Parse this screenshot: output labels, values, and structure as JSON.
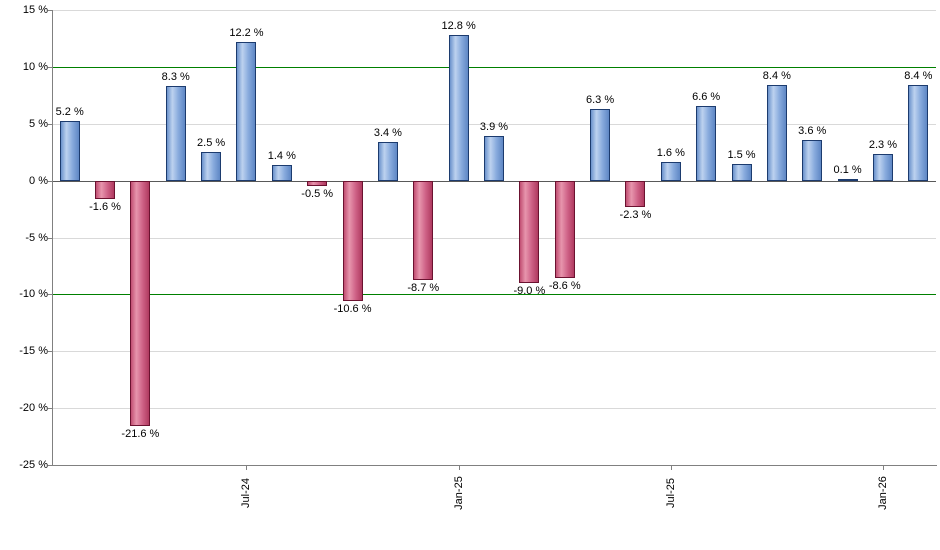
{
  "chart_data": {
    "type": "bar",
    "title": "",
    "xlabel": "",
    "ylabel": "",
    "ylim": [
      -25,
      15
    ],
    "grid": true,
    "legend": "none",
    "y_ticks": [
      {
        "value": 15,
        "label": "15 %"
      },
      {
        "value": 10,
        "label": "10 %"
      },
      {
        "value": 5,
        "label": "5 %"
      },
      {
        "value": 0,
        "label": "0 %"
      },
      {
        "value": -5,
        "label": "-5 %"
      },
      {
        "value": -10,
        "label": "-10 %"
      },
      {
        "value": -15,
        "label": "-15 %"
      },
      {
        "value": -20,
        "label": "-20 %"
      },
      {
        "value": -25,
        "label": "-25 %"
      }
    ],
    "reference_lines": [
      10,
      -10
    ],
    "x_ticks": [
      {
        "index": 5,
        "label": "Jul-24"
      },
      {
        "index": 11,
        "label": "Jan-25"
      },
      {
        "index": 17,
        "label": "Jul-25"
      },
      {
        "index": 23,
        "label": "Jan-26"
      }
    ],
    "values": [
      5.2,
      -1.6,
      -21.6,
      8.3,
      2.5,
      12.2,
      1.4,
      -0.5,
      -10.6,
      3.4,
      -8.7,
      12.8,
      3.9,
      -9.0,
      -8.6,
      6.3,
      -2.3,
      1.6,
      6.6,
      1.5,
      8.4,
      3.6,
      0.1,
      2.3,
      8.4
    ],
    "value_labels": [
      "5.2 %",
      "-1.6 %",
      "-21.6 %",
      "8.3 %",
      "2.5 %",
      "12.2 %",
      "1.4 %",
      "-0.5 %",
      "-10.6 %",
      "3.4 %",
      "-8.7 %",
      "12.8 %",
      "3.9 %",
      "-9.0 %",
      "-8.6 %",
      "6.3 %",
      "-2.3 %",
      "1.6 %",
      "6.6 %",
      "1.5 %",
      "8.4 %",
      "3.6 %",
      "0.1 %",
      "2.3 %",
      "8.4 %"
    ],
    "colors": {
      "positive_fill": "#86a9dc",
      "positive_border": "#1c3b6e",
      "negative_fill": "#ce6186",
      "negative_border": "#6b1230",
      "gridline": "#d9d9d9",
      "reference_line": "#008000",
      "zero_line": "#595959",
      "axis": "#808080"
    }
  }
}
